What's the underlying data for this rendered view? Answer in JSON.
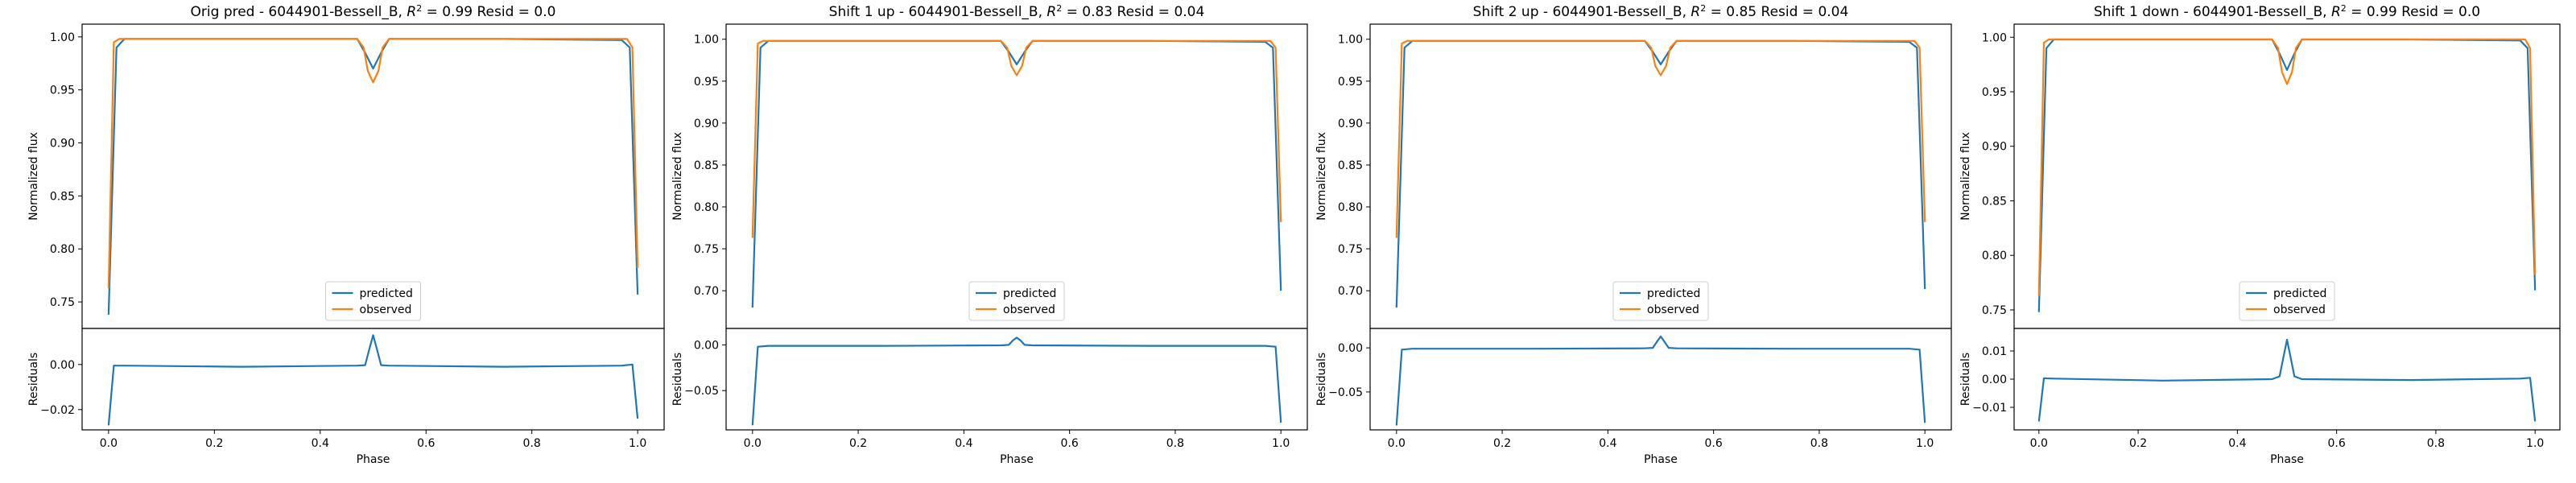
{
  "chart_data": [
    {
      "type": "line",
      "title": "Orig pred - 6044901-Bessell_B, $R^2 = 0.99$ Resid = 0.0",
      "title_parts": {
        "pre": "Orig pred - 6044901-Bessell_B, ",
        "r2_sym": "R",
        "r2_sup": "2",
        "r2_val": " = 0.99",
        "post": " Resid = 0.0"
      },
      "xlabel": "Phase",
      "ylabel": "Normalized flux",
      "ylabel_resid": "Residuals",
      "xlim": [
        -0.05,
        1.05
      ],
      "xticks": [
        "0.0",
        "0.2",
        "0.4",
        "0.6",
        "0.8",
        "1.0"
      ],
      "ylim": [
        0.725,
        1.012
      ],
      "yticks": [
        "0.75",
        "0.80",
        "0.85",
        "0.90",
        "0.95",
        "1.00"
      ],
      "resid_ylim": [
        -0.029,
        0.016
      ],
      "resid_yticks": [
        "-0.02",
        "0.00"
      ],
      "legend_position": "lower-center",
      "series": [
        {
          "name": "predicted",
          "color": "#1f77b4",
          "x": [
            0.0,
            0.015,
            0.03,
            0.25,
            0.47,
            0.485,
            0.5,
            0.515,
            0.53,
            0.75,
            0.97,
            0.985,
            1.0
          ],
          "y": [
            0.738,
            0.99,
            0.998,
            0.998,
            0.998,
            0.985,
            0.97,
            0.985,
            0.998,
            0.998,
            0.997,
            0.99,
            0.757
          ]
        },
        {
          "name": "observed",
          "color": "#ff7f0e",
          "x": [
            0.0,
            0.01,
            0.02,
            0.03,
            0.25,
            0.47,
            0.482,
            0.49,
            0.5,
            0.51,
            0.518,
            0.53,
            0.75,
            0.97,
            0.98,
            0.99,
            1.0
          ],
          "y": [
            0.763,
            0.995,
            0.998,
            0.998,
            0.998,
            0.998,
            0.99,
            0.968,
            0.957,
            0.968,
            0.99,
            0.998,
            0.998,
            0.998,
            0.998,
            0.99,
            0.782
          ]
        }
      ],
      "residuals": {
        "name": "residuals",
        "color": "#1f77b4",
        "x": [
          0.0,
          0.01,
          0.03,
          0.25,
          0.47,
          0.485,
          0.493,
          0.5,
          0.507,
          0.515,
          0.53,
          0.75,
          0.97,
          0.99,
          1.0
        ],
        "y": [
          -0.027,
          -0.0005,
          -0.0005,
          -0.001,
          -0.0005,
          -0.0003,
          0.007,
          0.013,
          0.007,
          -0.0003,
          -0.0005,
          -0.001,
          -0.0005,
          0.0,
          -0.024
        ]
      }
    },
    {
      "type": "line",
      "title": "Shift 1 up - 6044901-Bessell_B, $R^2 = 0.83$ Resid = 0.04",
      "title_parts": {
        "pre": "Shift 1 up - 6044901-Bessell_B, ",
        "r2_sym": "R",
        "r2_sup": "2",
        "r2_val": " = 0.83",
        "post": " Resid = 0.04"
      },
      "xlabel": "Phase",
      "ylabel": "Normalized flux",
      "ylabel_resid": "Residuals",
      "xlim": [
        -0.05,
        1.05
      ],
      "xticks": [
        "0.0",
        "0.2",
        "0.4",
        "0.6",
        "0.8",
        "1.0"
      ],
      "ylim": [
        0.655,
        1.018
      ],
      "yticks": [
        "0.70",
        "0.75",
        "0.80",
        "0.85",
        "0.90",
        "0.95",
        "1.00"
      ],
      "resid_ylim": [
        -0.093,
        0.018
      ],
      "resid_yticks": [
        "-0.05",
        "0.00"
      ],
      "legend_position": "lower-center",
      "series": [
        {
          "name": "predicted",
          "color": "#1f77b4",
          "x": [
            0.0,
            0.015,
            0.03,
            0.25,
            0.47,
            0.485,
            0.5,
            0.515,
            0.53,
            0.75,
            0.97,
            0.985,
            1.0
          ],
          "y": [
            0.68,
            0.99,
            0.998,
            0.998,
            0.998,
            0.985,
            0.97,
            0.985,
            0.998,
            0.998,
            0.997,
            0.99,
            0.7
          ]
        },
        {
          "name": "observed",
          "color": "#ff7f0e",
          "x": [
            0.0,
            0.01,
            0.02,
            0.03,
            0.25,
            0.47,
            0.482,
            0.49,
            0.5,
            0.51,
            0.518,
            0.53,
            0.75,
            0.97,
            0.98,
            0.99,
            1.0
          ],
          "y": [
            0.763,
            0.995,
            0.998,
            0.998,
            0.998,
            0.998,
            0.99,
            0.968,
            0.957,
            0.968,
            0.99,
            0.998,
            0.998,
            0.998,
            0.998,
            0.99,
            0.782
          ]
        }
      ],
      "residuals": {
        "name": "residuals",
        "color": "#1f77b4",
        "x": [
          0.0,
          0.01,
          0.03,
          0.25,
          0.47,
          0.485,
          0.493,
          0.5,
          0.507,
          0.515,
          0.53,
          0.75,
          0.97,
          0.99,
          1.0
        ],
        "y": [
          -0.088,
          -0.002,
          -0.001,
          -0.001,
          -0.0005,
          0.0,
          0.005,
          0.008,
          0.005,
          0.0,
          -0.0005,
          -0.001,
          -0.001,
          -0.002,
          -0.085
        ]
      }
    },
    {
      "type": "line",
      "title": "Shift 2 up - 6044901-Bessell_B, $R^2 = 0.85$ Resid = 0.04",
      "title_parts": {
        "pre": "Shift 2 up - 6044901-Bessell_B, ",
        "r2_sym": "R",
        "r2_sup": "2",
        "r2_val": " = 0.85",
        "post": " Resid = 0.04"
      },
      "xlabel": "Phase",
      "ylabel": "Normalized flux",
      "ylabel_resid": "Residuals",
      "xlim": [
        -0.05,
        1.05
      ],
      "xticks": [
        "0.0",
        "0.2",
        "0.4",
        "0.6",
        "0.8",
        "1.0"
      ],
      "ylim": [
        0.655,
        1.018
      ],
      "yticks": [
        "0.70",
        "0.75",
        "0.80",
        "0.85",
        "0.90",
        "0.95",
        "1.00"
      ],
      "resid_ylim": [
        -0.093,
        0.022
      ],
      "resid_yticks": [
        "-0.05",
        "0.00"
      ],
      "legend_position": "lower-center",
      "series": [
        {
          "name": "predicted",
          "color": "#1f77b4",
          "x": [
            0.0,
            0.015,
            0.03,
            0.25,
            0.47,
            0.485,
            0.5,
            0.515,
            0.53,
            0.75,
            0.97,
            0.985,
            1.0
          ],
          "y": [
            0.68,
            0.99,
            0.998,
            0.998,
            0.998,
            0.985,
            0.97,
            0.985,
            0.998,
            0.998,
            0.997,
            0.99,
            0.702
          ]
        },
        {
          "name": "observed",
          "color": "#ff7f0e",
          "x": [
            0.0,
            0.01,
            0.02,
            0.03,
            0.25,
            0.47,
            0.482,
            0.49,
            0.5,
            0.51,
            0.518,
            0.53,
            0.75,
            0.97,
            0.98,
            0.99,
            1.0
          ],
          "y": [
            0.763,
            0.995,
            0.998,
            0.998,
            0.998,
            0.998,
            0.99,
            0.968,
            0.957,
            0.968,
            0.99,
            0.998,
            0.998,
            0.998,
            0.998,
            0.99,
            0.782
          ]
        }
      ],
      "residuals": {
        "name": "residuals",
        "color": "#1f77b4",
        "x": [
          0.0,
          0.01,
          0.03,
          0.25,
          0.47,
          0.485,
          0.493,
          0.5,
          0.507,
          0.515,
          0.53,
          0.75,
          0.97,
          0.99,
          1.0
        ],
        "y": [
          -0.088,
          -0.002,
          -0.001,
          -0.001,
          -0.0005,
          0.0,
          0.007,
          0.013,
          0.007,
          0.0,
          -0.0005,
          -0.001,
          -0.001,
          -0.002,
          -0.085
        ]
      }
    },
    {
      "type": "line",
      "title": "Shift 1 down - 6044901-Bessell_B, $R^2 = 0.99$ Resid = 0.0",
      "title_parts": {
        "pre": "Shift 1 down - 6044901-Bessell_B, ",
        "r2_sym": "R",
        "r2_sup": "2",
        "r2_val": " = 0.99",
        "post": " Resid = 0.0"
      },
      "xlabel": "Phase",
      "ylabel": "Normalized flux",
      "ylabel_resid": "Residuals",
      "xlim": [
        -0.05,
        1.05
      ],
      "xticks": [
        "0.0",
        "0.2",
        "0.4",
        "0.6",
        "0.8",
        "1.0"
      ],
      "ylim": [
        0.733,
        1.012
      ],
      "yticks": [
        "0.75",
        "0.80",
        "0.85",
        "0.90",
        "0.95",
        "1.00"
      ],
      "resid_ylim": [
        -0.018,
        0.018
      ],
      "resid_yticks": [
        "-0.01",
        "0.00",
        "0.01"
      ],
      "legend_position": "lower-center",
      "series": [
        {
          "name": "predicted",
          "color": "#1f77b4",
          "x": [
            0.0,
            0.015,
            0.03,
            0.25,
            0.47,
            0.485,
            0.5,
            0.515,
            0.53,
            0.75,
            0.97,
            0.985,
            1.0
          ],
          "y": [
            0.748,
            0.99,
            0.998,
            0.998,
            0.998,
            0.985,
            0.97,
            0.985,
            0.998,
            0.998,
            0.997,
            0.99,
            0.768
          ]
        },
        {
          "name": "observed",
          "color": "#ff7f0e",
          "x": [
            0.0,
            0.01,
            0.02,
            0.03,
            0.25,
            0.47,
            0.482,
            0.49,
            0.5,
            0.51,
            0.518,
            0.53,
            0.75,
            0.97,
            0.98,
            0.99,
            1.0
          ],
          "y": [
            0.763,
            0.995,
            0.998,
            0.998,
            0.998,
            0.998,
            0.99,
            0.968,
            0.957,
            0.968,
            0.99,
            0.998,
            0.998,
            0.998,
            0.998,
            0.99,
            0.782
          ]
        }
      ],
      "residuals": {
        "name": "residuals",
        "color": "#1f77b4",
        "x": [
          0.0,
          0.01,
          0.03,
          0.25,
          0.47,
          0.485,
          0.493,
          0.5,
          0.507,
          0.515,
          0.53,
          0.75,
          0.97,
          0.99,
          1.0
        ],
        "y": [
          -0.015,
          0.0003,
          0.0002,
          -0.0005,
          0.0,
          0.001,
          0.008,
          0.014,
          0.008,
          0.001,
          0.0,
          -0.0003,
          0.0002,
          0.0005,
          -0.015
        ]
      }
    }
  ]
}
